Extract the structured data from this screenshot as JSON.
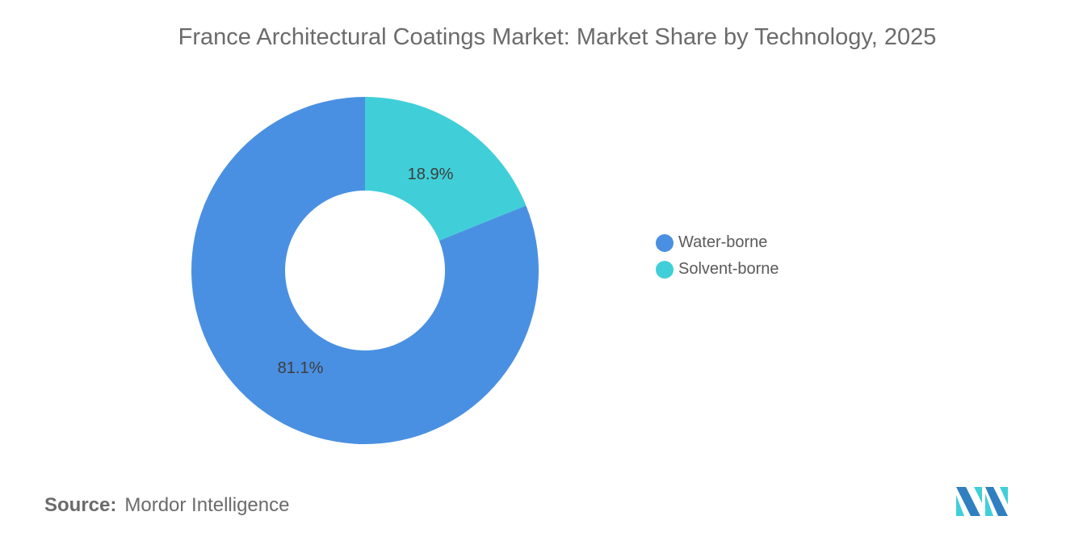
{
  "chart_data": {
    "type": "pie",
    "variant": "donut",
    "title": "France Architectural Coatings Market: Market Share by Technology, 2025",
    "slices": [
      {
        "label": "Solvent-borne",
        "value": 18.9,
        "display": "18.9%",
        "color": "#40cfd8"
      },
      {
        "label": "Water-borne",
        "value": 81.1,
        "display": "81.1%",
        "color": "#4a90e2"
      }
    ],
    "legend": {
      "placement": "right",
      "entries": [
        "Water-borne",
        "Solvent-borne"
      ],
      "colors": [
        "#4a90e2",
        "#40cfd8"
      ]
    }
  },
  "source": {
    "label": "Source:",
    "value": "Mordor Intelligence"
  },
  "logo": {
    "name": "mordor-intelligence-logo"
  }
}
